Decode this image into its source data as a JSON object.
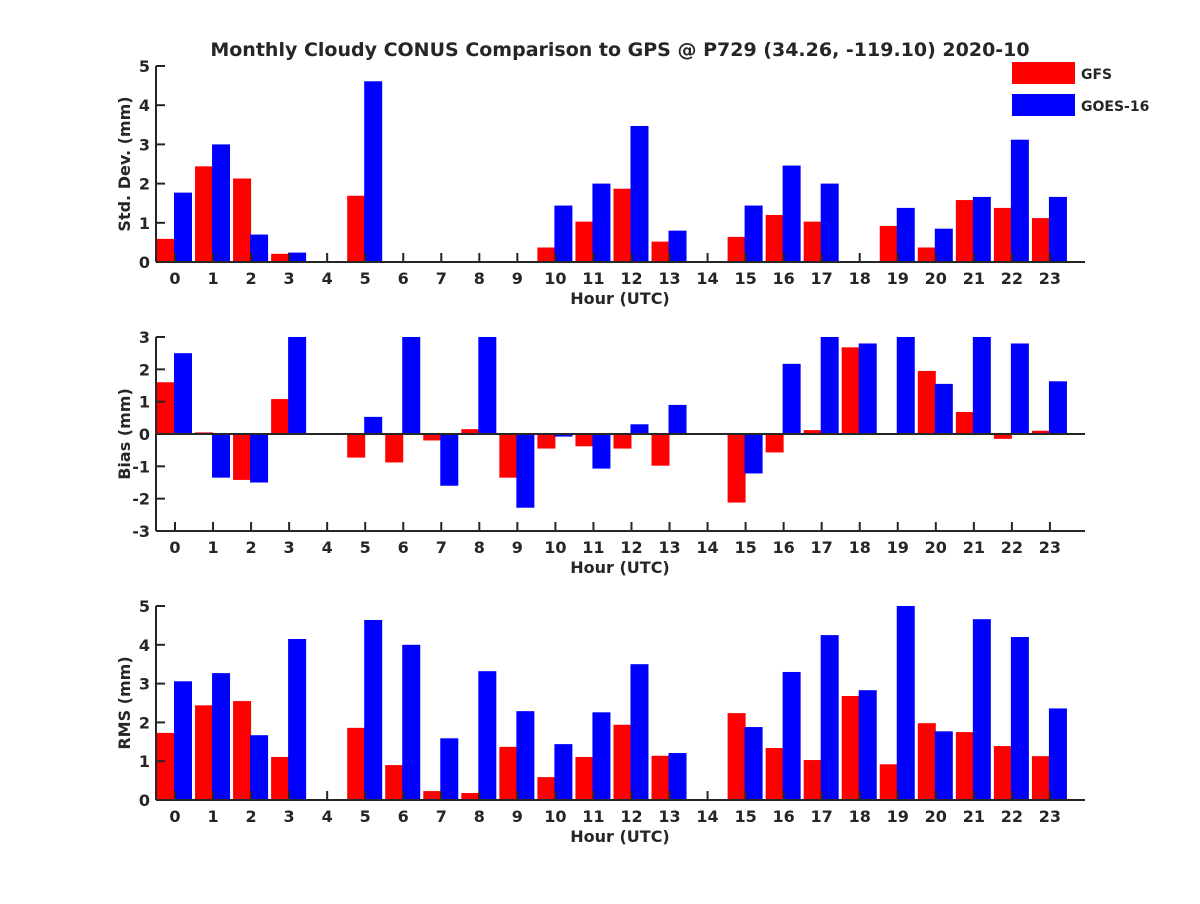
{
  "chart_data": {
    "type": "bar",
    "title": "Monthly Cloudy CONUS Comparison to GPS @ P729 (34.26, -119.10) 2020-10",
    "legend": {
      "placement": "top-right",
      "entries": [
        {
          "name": "GFS",
          "color": "#ff0000"
        },
        {
          "name": "GOES-16",
          "color": "#0000ff"
        }
      ]
    },
    "categories": [
      "0",
      "1",
      "2",
      "3",
      "4",
      "5",
      "6",
      "7",
      "8",
      "9",
      "10",
      "11",
      "12",
      "13",
      "14",
      "15",
      "16",
      "17",
      "18",
      "19",
      "20",
      "21",
      "22",
      "23"
    ],
    "panels": [
      {
        "id": "stddev",
        "ylabel": "Std. Dev. (mm)",
        "xlabel": "Hour (UTC)",
        "ylim": [
          0,
          5
        ],
        "yticks": [
          0,
          1,
          2,
          3,
          4,
          5
        ],
        "series": [
          {
            "name": "GFS",
            "values": [
              0.59,
              2.44,
              2.13,
              0.21,
              0,
              1.69,
              0,
              0,
              0,
              0,
              0.37,
              1.03,
              1.87,
              0.52,
              0,
              0.64,
              1.2,
              1.03,
              0,
              0.92,
              0.37,
              1.58,
              1.38,
              1.12
            ]
          },
          {
            "name": "GOES-16",
            "values": [
              1.77,
              3.0,
              0.7,
              0.24,
              0,
              4.61,
              0,
              0,
              0,
              0,
              1.44,
              2.0,
              3.47,
              0.8,
              0,
              1.44,
              2.46,
              2.0,
              0,
              1.38,
              0.85,
              1.66,
              3.12,
              1.66
            ]
          }
        ]
      },
      {
        "id": "bias",
        "ylabel": "Bias (mm)",
        "xlabel": "Hour (UTC)",
        "ylim": [
          -3,
          3
        ],
        "yticks": [
          -3,
          -2,
          -1,
          0,
          1,
          2,
          3
        ],
        "series": [
          {
            "name": "GFS",
            "values": [
              1.6,
              0.05,
              -1.42,
              1.08,
              0,
              -0.73,
              -0.88,
              -0.2,
              0.15,
              -1.35,
              -0.45,
              -0.38,
              -0.45,
              -0.98,
              0,
              -2.12,
              -0.57,
              0.12,
              2.68,
              0.02,
              1.95,
              0.68,
              -0.15,
              0.1
            ]
          },
          {
            "name": "GOES-16",
            "values": [
              2.5,
              -1.35,
              -1.5,
              3.0,
              0,
              0.53,
              3.0,
              -1.6,
              3.0,
              -2.28,
              -0.08,
              -1.07,
              0.3,
              0.9,
              0,
              -1.22,
              2.17,
              3.0,
              2.8,
              3.0,
              1.55,
              3.0,
              2.8,
              1.63
            ]
          }
        ]
      },
      {
        "id": "rms",
        "ylabel": "RMS (mm)",
        "xlabel": "Hour (UTC)",
        "ylim": [
          0,
          5
        ],
        "yticks": [
          0,
          1,
          2,
          3,
          4,
          5
        ],
        "series": [
          {
            "name": "GFS",
            "values": [
              1.73,
              2.44,
              2.55,
              1.11,
              0,
              1.86,
              0.9,
              0.23,
              0.18,
              1.37,
              0.59,
              1.11,
              1.94,
              1.14,
              0,
              2.24,
              1.34,
              1.03,
              2.68,
              0.92,
              1.98,
              1.75,
              1.39,
              1.13
            ]
          },
          {
            "name": "GOES-16",
            "values": [
              3.06,
              3.27,
              1.67,
              4.15,
              0,
              4.64,
              4.0,
              1.59,
              3.32,
              2.29,
              1.44,
              2.26,
              3.5,
              1.21,
              0,
              1.88,
              3.3,
              4.25,
              2.83,
              5.0,
              1.77,
              4.66,
              4.2,
              2.36
            ]
          }
        ]
      }
    ]
  }
}
